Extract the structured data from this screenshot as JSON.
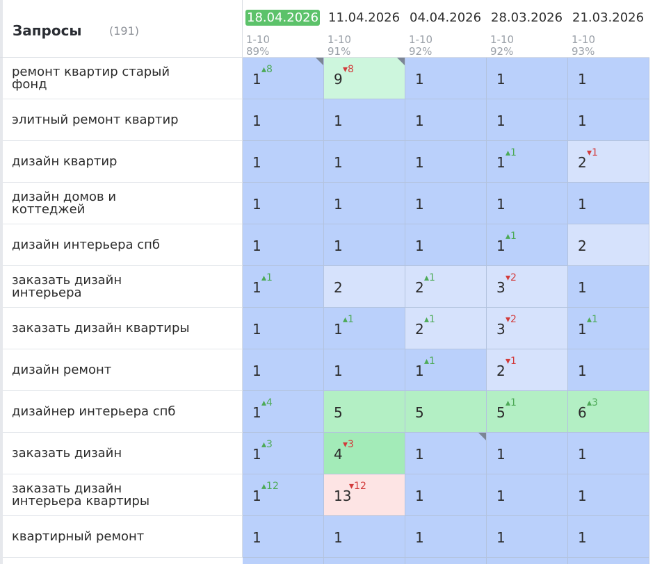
{
  "header": {
    "title": "Запросы",
    "count": "(191)"
  },
  "columns": [
    {
      "date": "18.04.2026",
      "range": "1-10",
      "pct": "89%",
      "active": true
    },
    {
      "date": "11.04.2026",
      "range": "1-10",
      "pct": "91%",
      "active": false
    },
    {
      "date": "04.04.2026",
      "range": "1-10",
      "pct": "92%",
      "active": false
    },
    {
      "date": "28.03.2026",
      "range": "1-10",
      "pct": "92%",
      "active": false
    },
    {
      "date": "21.03.2026",
      "range": "1-10",
      "pct": "93%",
      "active": false
    }
  ],
  "rows": [
    {
      "query": "ремонт квартир старый фонд",
      "cells": [
        {
          "pos": "1",
          "delta": "8",
          "dir": "up",
          "color": "blue",
          "flag": true
        },
        {
          "pos": "9",
          "delta": "8",
          "dir": "down",
          "color": "mint",
          "flag": true
        },
        {
          "pos": "1",
          "color": "blue"
        },
        {
          "pos": "1",
          "color": "blue"
        },
        {
          "pos": "1",
          "color": "blue"
        }
      ]
    },
    {
      "query": "элитный ремонт квартир",
      "cells": [
        {
          "pos": "1",
          "color": "blue"
        },
        {
          "pos": "1",
          "color": "blue"
        },
        {
          "pos": "1",
          "color": "blue"
        },
        {
          "pos": "1",
          "color": "blue"
        },
        {
          "pos": "1",
          "color": "blue"
        }
      ]
    },
    {
      "query": "дизайн квартир",
      "cells": [
        {
          "pos": "1",
          "color": "blue"
        },
        {
          "pos": "1",
          "color": "blue"
        },
        {
          "pos": "1",
          "color": "blue"
        },
        {
          "pos": "1",
          "delta": "1",
          "dir": "up",
          "color": "blue"
        },
        {
          "pos": "2",
          "delta": "1",
          "dir": "down",
          "color": "light"
        }
      ]
    },
    {
      "query": "дизайн домов и коттеджей",
      "cells": [
        {
          "pos": "1",
          "color": "blue"
        },
        {
          "pos": "1",
          "color": "blue"
        },
        {
          "pos": "1",
          "color": "blue"
        },
        {
          "pos": "1",
          "color": "blue"
        },
        {
          "pos": "1",
          "color": "blue"
        }
      ]
    },
    {
      "query": "дизайн интерьера спб",
      "cells": [
        {
          "pos": "1",
          "color": "blue"
        },
        {
          "pos": "1",
          "color": "blue"
        },
        {
          "pos": "1",
          "color": "blue"
        },
        {
          "pos": "1",
          "delta": "1",
          "dir": "up",
          "color": "blue"
        },
        {
          "pos": "2",
          "color": "light"
        }
      ]
    },
    {
      "query": "заказать дизайн интерьера",
      "cells": [
        {
          "pos": "1",
          "delta": "1",
          "dir": "up",
          "color": "blue"
        },
        {
          "pos": "2",
          "color": "light"
        },
        {
          "pos": "2",
          "delta": "1",
          "dir": "up",
          "color": "light"
        },
        {
          "pos": "3",
          "delta": "2",
          "dir": "down",
          "color": "light"
        },
        {
          "pos": "1",
          "color": "blue"
        }
      ]
    },
    {
      "query": "заказать дизайн квартиры",
      "cells": [
        {
          "pos": "1",
          "color": "blue"
        },
        {
          "pos": "1",
          "delta": "1",
          "dir": "up",
          "color": "blue"
        },
        {
          "pos": "2",
          "delta": "1",
          "dir": "up",
          "color": "light"
        },
        {
          "pos": "3",
          "delta": "2",
          "dir": "down",
          "color": "light"
        },
        {
          "pos": "1",
          "delta": "1",
          "dir": "up",
          "color": "blue"
        }
      ]
    },
    {
      "query": "дизайн ремонт",
      "cells": [
        {
          "pos": "1",
          "color": "blue"
        },
        {
          "pos": "1",
          "color": "blue"
        },
        {
          "pos": "1",
          "delta": "1",
          "dir": "up",
          "color": "blue"
        },
        {
          "pos": "2",
          "delta": "1",
          "dir": "down",
          "color": "light"
        },
        {
          "pos": "1",
          "color": "blue"
        }
      ]
    },
    {
      "query": "дизайнер интерьера спб",
      "cells": [
        {
          "pos": "1",
          "delta": "4",
          "dir": "up",
          "color": "blue"
        },
        {
          "pos": "5",
          "color": "green"
        },
        {
          "pos": "5",
          "color": "green"
        },
        {
          "pos": "5",
          "delta": "1",
          "dir": "up",
          "color": "green"
        },
        {
          "pos": "6",
          "delta": "3",
          "dir": "up",
          "color": "green"
        }
      ]
    },
    {
      "query": "заказать дизайн",
      "cells": [
        {
          "pos": "1",
          "delta": "3",
          "dir": "up",
          "color": "blue"
        },
        {
          "pos": "4",
          "delta": "3",
          "dir": "down",
          "color": "green2"
        },
        {
          "pos": "1",
          "color": "blue",
          "flag": true
        },
        {
          "pos": "1",
          "color": "blue"
        },
        {
          "pos": "1",
          "color": "blue"
        }
      ]
    },
    {
      "query": "заказать дизайн интерьера квартиры",
      "cells": [
        {
          "pos": "1",
          "delta": "12",
          "dir": "up",
          "color": "blue"
        },
        {
          "pos": "13",
          "delta": "12",
          "dir": "down",
          "color": "pink"
        },
        {
          "pos": "1",
          "color": "blue"
        },
        {
          "pos": "1",
          "color": "blue"
        },
        {
          "pos": "1",
          "color": "blue"
        }
      ]
    },
    {
      "query": "квартирный ремонт",
      "cells": [
        {
          "pos": "1",
          "color": "blue"
        },
        {
          "pos": "1",
          "color": "blue"
        },
        {
          "pos": "1",
          "color": "blue"
        },
        {
          "pos": "1",
          "color": "blue"
        },
        {
          "pos": "1",
          "color": "blue"
        }
      ]
    }
  ],
  "colors": {
    "blue": "#bad0fb",
    "light": "#d6e2fc",
    "green": "#b3efc4",
    "green2": "#a3ebb8",
    "mint": "#cdf6dd",
    "pink": "#fde4e4",
    "up": "#4daa57",
    "down": "#d23b3b",
    "active_date": "#5cc26a"
  }
}
